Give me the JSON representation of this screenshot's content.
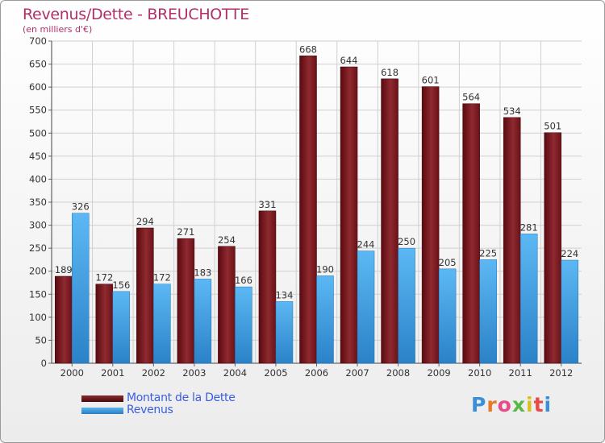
{
  "chart_data": {
    "type": "bar",
    "title": "Revenus/Dette - BREUCHOTTE",
    "subtitle": "(en milliers d'€)",
    "categories": [
      "2000",
      "2001",
      "2002",
      "2003",
      "2004",
      "2005",
      "2006",
      "2007",
      "2008",
      "2009",
      "2010",
      "2011",
      "2012"
    ],
    "series": [
      {
        "name": "Montant de la Dette",
        "color": "#7a1a1f",
        "values": [
          189,
          172,
          294,
          271,
          254,
          331,
          668,
          644,
          618,
          601,
          564,
          534,
          501
        ]
      },
      {
        "name": "Revenus",
        "color": "#3a9be0",
        "values": [
          326,
          156,
          172,
          183,
          166,
          134,
          190,
          244,
          250,
          205,
          225,
          281,
          224
        ]
      }
    ],
    "ylim": [
      0,
      700
    ],
    "yticks": [
      0,
      50,
      100,
      150,
      200,
      250,
      300,
      350,
      400,
      450,
      500,
      550,
      600,
      650,
      700
    ],
    "grid": true,
    "legend_position": "bottom-left"
  },
  "legend": {
    "debt_label": "Montant de la Dette",
    "revenue_label": "Revenus"
  },
  "logo": {
    "text": "Proxiti"
  }
}
